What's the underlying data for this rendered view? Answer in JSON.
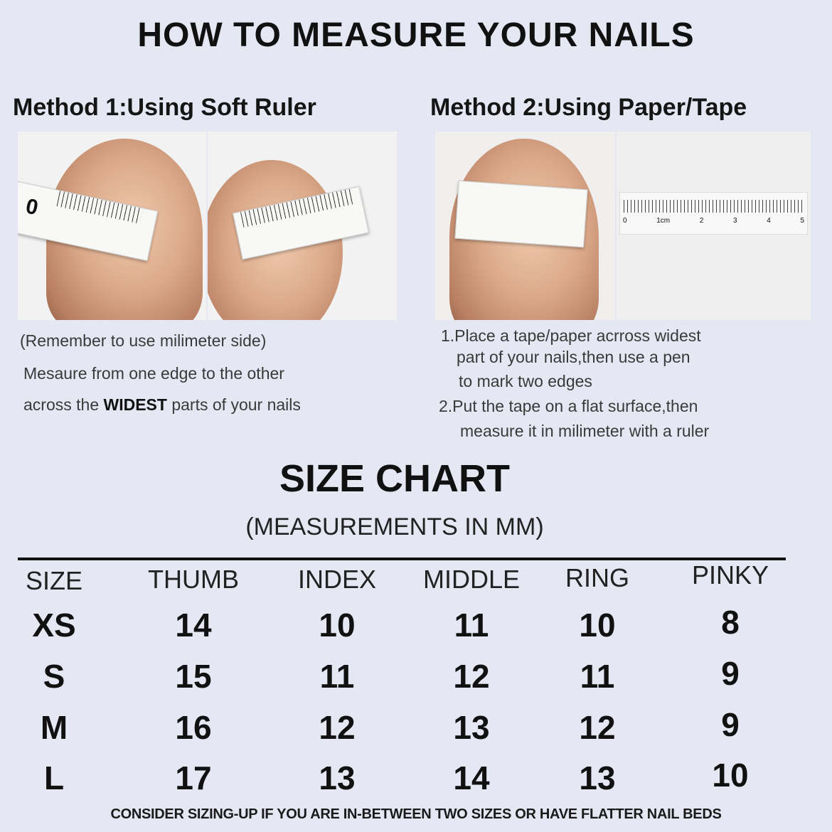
{
  "title": "HOW TO MEASURE YOUR NAILS",
  "method1": {
    "heading": "Method 1:Using Soft Ruler",
    "note": "(Remember to use milimeter side)",
    "line1": "Mesaure from one edge to the other",
    "line2_pre": "across the ",
    "line2_bold": "WIDEST",
    "line2_post": " parts of your nails"
  },
  "method2": {
    "heading": "Method 2:Using Paper/Tape",
    "steps": [
      "1.Place a tape/paper acrross widest",
      "part of your nails,then use a pen",
      "to mark two edges",
      "2.Put the tape on a flat surface,then",
      "measure it in milimeter with a ruler"
    ],
    "ruler_labels": [
      "0",
      "1cm",
      "2",
      "3",
      "4",
      "5"
    ]
  },
  "size_chart": {
    "title": "SIZE CHART",
    "subtitle": "(MEASUREMENTS IN MM)",
    "headers": [
      "SIZE",
      "THUMB",
      "INDEX",
      "MIDDLE",
      "RING",
      "PINKY"
    ],
    "rows": [
      [
        "XS",
        "14",
        "10",
        "11",
        "10",
        "8"
      ],
      [
        "S",
        "15",
        "11",
        "12",
        "11",
        "9"
      ],
      [
        "M",
        "16",
        "12",
        "13",
        "12",
        "9"
      ],
      [
        "L",
        "17",
        "13",
        "14",
        "13",
        "10"
      ]
    ]
  },
  "footer": "CONSIDER SIZING-UP IF YOU ARE IN-BETWEEN TWO SIZES OR HAVE FLATTER NAIL BEDS"
}
